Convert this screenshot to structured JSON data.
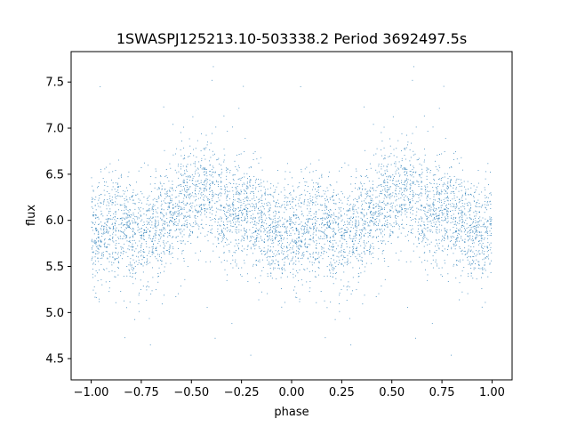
{
  "chart_data": {
    "type": "scatter",
    "title": "1SWASPJ125213.10-503338.2 Period 3692497.5s",
    "xlabel": "phase",
    "ylabel": "flux",
    "xlim": [
      -1.1,
      1.1
    ],
    "ylim": [
      4.27,
      7.83
    ],
    "xticks": [
      -1.0,
      -0.75,
      -0.5,
      -0.25,
      0.0,
      0.25,
      0.5,
      0.75,
      1.0
    ],
    "xtick_labels": [
      "−1.00",
      "−0.75",
      "−0.50",
      "−0.25",
      "0.00",
      "0.25",
      "0.50",
      "0.75",
      "1.00"
    ],
    "yticks": [
      4.5,
      5.0,
      5.5,
      6.0,
      6.5,
      7.0,
      7.5
    ],
    "ytick_labels": [
      "4.5",
      "5.0",
      "5.5",
      "6.0",
      "6.5",
      "7.0",
      "7.5"
    ],
    "grid": false,
    "legend": "none",
    "point_color": "#1f77b4",
    "phase_range": [
      -1.0,
      1.0
    ],
    "mean_flux_profile": {
      "phase": [
        0.0,
        0.05,
        0.1,
        0.15,
        0.2,
        0.25,
        0.3,
        0.35,
        0.4,
        0.45,
        0.5,
        0.55,
        0.6,
        0.65,
        0.7,
        0.75,
        0.8,
        0.85,
        0.9,
        0.95,
        1.0
      ],
      "flux": [
        5.9,
        5.85,
        5.95,
        5.95,
        5.85,
        5.8,
        5.85,
        5.95,
        6.05,
        6.2,
        6.25,
        6.25,
        6.3,
        6.15,
        6.1,
        6.05,
        6.05,
        5.95,
        5.9,
        5.85,
        5.9
      ]
    },
    "scatter_sd": 0.28,
    "n_points_per_cycle": 2600
  }
}
